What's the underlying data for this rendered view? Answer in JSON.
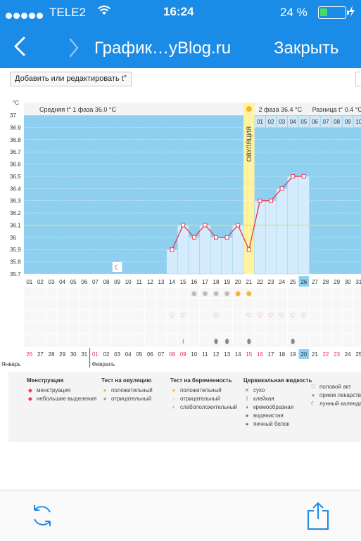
{
  "status": {
    "carrier": "TELE2",
    "time": "16:24",
    "battery": "24 %",
    "battery_level": 0.24
  },
  "nav": {
    "title": "График…yBlog.ru",
    "close": "Закрыть"
  },
  "toolbar": {
    "edit_label": "Добавить или редактировать t°"
  },
  "chart": {
    "unit": "°C",
    "phase1": "Средняя t° 1 фаза 36.0 °C",
    "phase2": "2 фаза 36.4 °C",
    "diff": "Разница t° 0.4 °C",
    "ovulation": "ОВУЛЯЦИЯ",
    "month1": "Январь",
    "month2": "Февраль"
  },
  "chart_data": {
    "type": "line",
    "ylabel": "°C",
    "ylim": [
      35.7,
      37.0
    ],
    "yticks": [
      "37",
      "36.9",
      "36.8",
      "36.7",
      "36.6",
      "36.5",
      "36.4",
      "36.3",
      "36.2",
      "36.1",
      "36",
      "35.9",
      "35.8",
      "35.7"
    ],
    "cycle_days": [
      "01",
      "02",
      "03",
      "04",
      "05",
      "06",
      "07",
      "08",
      "09",
      "10",
      "11",
      "12",
      "13",
      "14",
      "15",
      "16",
      "17",
      "18",
      "19",
      "20",
      "21",
      "22",
      "23",
      "24",
      "25",
      "26",
      "27",
      "28",
      "29",
      "30",
      "31"
    ],
    "phase2_days": [
      "01",
      "02",
      "03",
      "04",
      "05",
      "06",
      "07",
      "08",
      "09",
      "10"
    ],
    "dates": [
      "26",
      "27",
      "28",
      "29",
      "30",
      "31",
      "01",
      "02",
      "03",
      "04",
      "05",
      "06",
      "07",
      "08",
      "09",
      "10",
      "11",
      "12",
      "13",
      "14",
      "15",
      "16",
      "17",
      "18",
      "19",
      "20",
      "21",
      "22",
      "23",
      "24",
      "25"
    ],
    "red_dates": [
      0,
      6,
      13,
      14,
      20,
      21,
      27,
      28
    ],
    "current_day_index": 25,
    "ovulation_day_index": 20,
    "temperature_days": [
      14,
      15,
      16,
      17,
      18,
      19,
      20,
      21,
      22,
      23,
      24,
      25,
      26
    ],
    "temperature_values": [
      35.9,
      36.1,
      36.0,
      36.1,
      36.0,
      36.0,
      36.1,
      35.9,
      36.3,
      36.3,
      36.4,
      36.5,
      36.5
    ],
    "average_line": 36.1,
    "avg_phase1": 36.0,
    "avg_phase2": 36.4,
    "diff": 0.4
  },
  "markers": {
    "moon_day": 9,
    "ovulation_tests_negative": [
      16,
      17,
      18,
      19
    ],
    "ovulation_tests_positive": [
      20,
      21
    ],
    "sex_days": [
      14,
      15,
      18,
      21,
      22,
      23,
      24,
      25,
      26
    ],
    "cervical_sticky": [
      15
    ],
    "cervical_watery": [
      18,
      19,
      21,
      25
    ]
  },
  "legend": {
    "groups": [
      {
        "title": "Менструация",
        "items": [
          {
            "icon": "drop-icon",
            "color": "#e83a5a",
            "label": "менструация"
          },
          {
            "icon": "small-drop-icon",
            "color": "#e83a5a",
            "label": "небольшие выделения"
          }
        ]
      },
      {
        "title": "Тест на овуляцию",
        "items": [
          {
            "icon": "sun-positive-icon",
            "color": "#f5b731",
            "label": "положительный"
          },
          {
            "icon": "sun-negative-icon",
            "color": "#9a9a9a",
            "label": "отрицательный"
          }
        ]
      },
      {
        "title": "Тест на беременность",
        "items": [
          {
            "icon": "test-positive-icon",
            "color": "#f5b731",
            "label": "положительный"
          },
          {
            "icon": "test-negative-icon",
            "color": "#bbbbbb",
            "label": "отрицательный"
          },
          {
            "icon": "test-weak-icon",
            "color": "#d0b060",
            "label": "слабоположительный"
          }
        ]
      },
      {
        "title": "Цервикальная жидкость",
        "items": [
          {
            "icon": "dry-icon",
            "color": "#777777",
            "label": "сухо"
          },
          {
            "icon": "sticky-icon",
            "color": "#777777",
            "label": "клейкая"
          },
          {
            "icon": "creamy-icon",
            "color": "#777777",
            "label": "кремообразная"
          },
          {
            "icon": "watery-icon",
            "color": "#777777",
            "label": "водянистая"
          },
          {
            "icon": "eggwhite-icon",
            "color": "#777777",
            "label": "яичный белок"
          }
        ]
      },
      {
        "title": "",
        "items": [
          {
            "icon": "heart-icon",
            "color": "#e83a5a",
            "label": "половой акт"
          },
          {
            "icon": "pill-icon",
            "color": "#999999",
            "label": "прием лекарств"
          },
          {
            "icon": "moon-icon",
            "color": "#d81b60",
            "label": "лунный календарь"
          }
        ]
      }
    ]
  },
  "colors": {
    "accent": "#1a8be6",
    "chart_bg": "#8fd0f0",
    "ovulation": "#fff3a0",
    "line": "#ee3a5a",
    "heart": "#e83a5a"
  }
}
